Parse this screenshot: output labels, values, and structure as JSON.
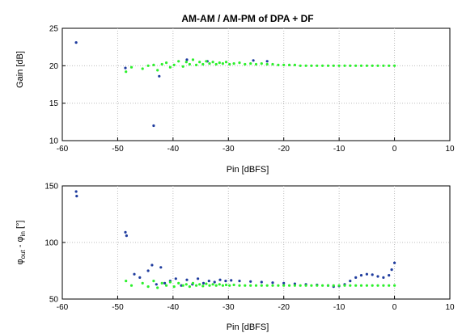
{
  "title": "AM-AM / AM-PM of DPA + DF",
  "colors": {
    "blue": "#1f3c9e",
    "green": "#2cf02c"
  },
  "chart_data": [
    {
      "type": "scatter",
      "title": "AM-AM / AM-PM of DPA + DF",
      "xlabel": "Pin [dBFS]",
      "ylabel": "Gain [dB]",
      "xlim": [
        -60,
        10
      ],
      "ylim": [
        10,
        25
      ],
      "xticks": [
        "-60",
        "-50",
        "-40",
        "-30",
        "-20",
        "-10",
        "0",
        "10"
      ],
      "yticks": [
        "10",
        "15",
        "20",
        "25"
      ],
      "grid": true,
      "series": [
        {
          "color": "blue",
          "x": [
            -57.5,
            -43.5,
            -48.6,
            -42.5,
            -37.5,
            -33.8,
            -25.5,
            -23.0
          ],
          "y": [
            23.1,
            12.0,
            19.7,
            18.6,
            20.8,
            20.6,
            20.7,
            20.6
          ]
        },
        {
          "color": "green",
          "x": [
            -48.5,
            -47.5,
            -45.5,
            -44.5,
            -43.5,
            -42.8,
            -42.0,
            -41.2,
            -40.5,
            -39.8,
            -39.0,
            -38.2,
            -37.6,
            -37.0,
            -36.4,
            -35.8,
            -35.2,
            -34.6,
            -34.0,
            -33.4,
            -32.8,
            -32.2,
            -31.6,
            -31.0,
            -30.4,
            -29.8,
            -29.0,
            -28.0,
            -27.0,
            -26.0,
            -25.0,
            -24.0,
            -23.0,
            -22.0,
            -21.0,
            -20.0,
            -19.0,
            -18.0,
            -17.0,
            -16.0,
            -15.0,
            -14.0,
            -13.0,
            -12.0,
            -11.0,
            -10.0,
            -9.0,
            -8.0,
            -7.0,
            -6.0,
            -5.0,
            -4.0,
            -3.0,
            -2.0,
            -1.0,
            0.0
          ],
          "y": [
            19.2,
            19.8,
            19.6,
            20.0,
            20.1,
            19.4,
            20.2,
            20.4,
            19.8,
            20.1,
            20.6,
            19.9,
            20.5,
            20.2,
            20.8,
            20.1,
            20.5,
            20.2,
            20.6,
            20.3,
            20.5,
            20.2,
            20.4,
            20.3,
            20.5,
            20.2,
            20.3,
            20.4,
            20.2,
            20.3,
            20.2,
            20.3,
            20.2,
            20.2,
            20.1,
            20.1,
            20.1,
            20.1,
            20.0,
            20.0,
            20.0,
            20.0,
            20.0,
            20.0,
            20.0,
            20.0,
            20.0,
            20.0,
            20.0,
            20.0,
            20.0,
            20.0,
            20.0,
            20.0,
            20.0,
            20.0
          ]
        }
      ]
    },
    {
      "type": "scatter",
      "xlabel": "Pin [dBFS]",
      "ylabel": "φout - φin [°]",
      "ylabel_parts": {
        "phi1": "φ",
        "sub1": "out",
        "minus": " - ",
        "phi2": "φ",
        "sub2": "in",
        "unit": " [°]"
      },
      "xlim": [
        -60,
        10
      ],
      "ylim": [
        50,
        150
      ],
      "xticks": [
        "-60",
        "-50",
        "-40",
        "-30",
        "-20",
        "-10",
        "0",
        "10"
      ],
      "yticks": [
        "50",
        "100",
        "150"
      ],
      "grid": true,
      "series": [
        {
          "color": "blue",
          "x": [
            -57.5,
            -57.4,
            -48.6,
            -48.4,
            -47.0,
            -46.0,
            -44.5,
            -43.8,
            -43.0,
            -42.2,
            -41.5,
            -40.5,
            -39.5,
            -38.5,
            -37.5,
            -36.5,
            -35.5,
            -34.5,
            -33.5,
            -32.5,
            -31.5,
            -30.5,
            -29.5,
            -28.0,
            -26.0,
            -24.0,
            -22.0,
            -20.0,
            -18.0,
            -16.0,
            -14.0,
            -12.0,
            -11.0,
            -10.0,
            -9.0,
            -8.0,
            -7.0,
            -6.0,
            -5.0,
            -4.0,
            -3.0,
            -2.0,
            -1.0,
            -0.5,
            0.0
          ],
          "y": [
            145.0,
            141.0,
            109.0,
            106.0,
            72.0,
            69.0,
            75.0,
            80.0,
            63.0,
            78.0,
            64.0,
            66.0,
            68.0,
            62.0,
            67.0,
            63.0,
            68.0,
            64.0,
            66.0,
            65.0,
            67.0,
            66.0,
            66.5,
            66.0,
            65.5,
            65.0,
            64.5,
            64.0,
            63.5,
            63.0,
            62.5,
            62.0,
            61.0,
            61.5,
            63.0,
            66.0,
            69.0,
            71.0,
            72.0,
            71.5,
            70.0,
            69.0,
            71.0,
            76.0,
            82.0
          ]
        },
        {
          "color": "green",
          "x": [
            -48.5,
            -47.5,
            -45.5,
            -44.5,
            -43.5,
            -42.8,
            -42.0,
            -41.2,
            -40.5,
            -39.8,
            -39.0,
            -38.2,
            -37.6,
            -37.0,
            -36.4,
            -35.8,
            -35.2,
            -34.6,
            -34.0,
            -33.4,
            -32.8,
            -32.2,
            -31.6,
            -31.0,
            -30.4,
            -29.8,
            -29.0,
            -28.0,
            -27.0,
            -26.0,
            -25.0,
            -24.0,
            -23.0,
            -22.0,
            -21.0,
            -20.0,
            -19.0,
            -18.0,
            -17.0,
            -16.0,
            -15.0,
            -14.0,
            -13.0,
            -12.0,
            -11.0,
            -10.0,
            -9.0,
            -8.0,
            -7.0,
            -6.0,
            -5.0,
            -4.0,
            -3.0,
            -2.0,
            -1.0,
            0.0
          ],
          "y": [
            66.0,
            62.0,
            64.0,
            61.0,
            66.0,
            60.0,
            64.0,
            62.0,
            65.0,
            61.0,
            64.0,
            62.0,
            63.0,
            61.0,
            64.0,
            62.0,
            63.0,
            61.5,
            63.5,
            62.0,
            63.0,
            62.0,
            63.0,
            62.0,
            62.5,
            62.0,
            62.5,
            62.0,
            62.0,
            62.0,
            62.0,
            62.0,
            62.0,
            62.0,
            62.0,
            62.0,
            62.0,
            62.0,
            62.0,
            62.0,
            62.0,
            62.0,
            62.0,
            62.0,
            62.0,
            62.0,
            62.0,
            62.0,
            62.0,
            62.0,
            62.0,
            62.0,
            62.0,
            62.0,
            62.0,
            62.0
          ]
        }
      ]
    }
  ]
}
